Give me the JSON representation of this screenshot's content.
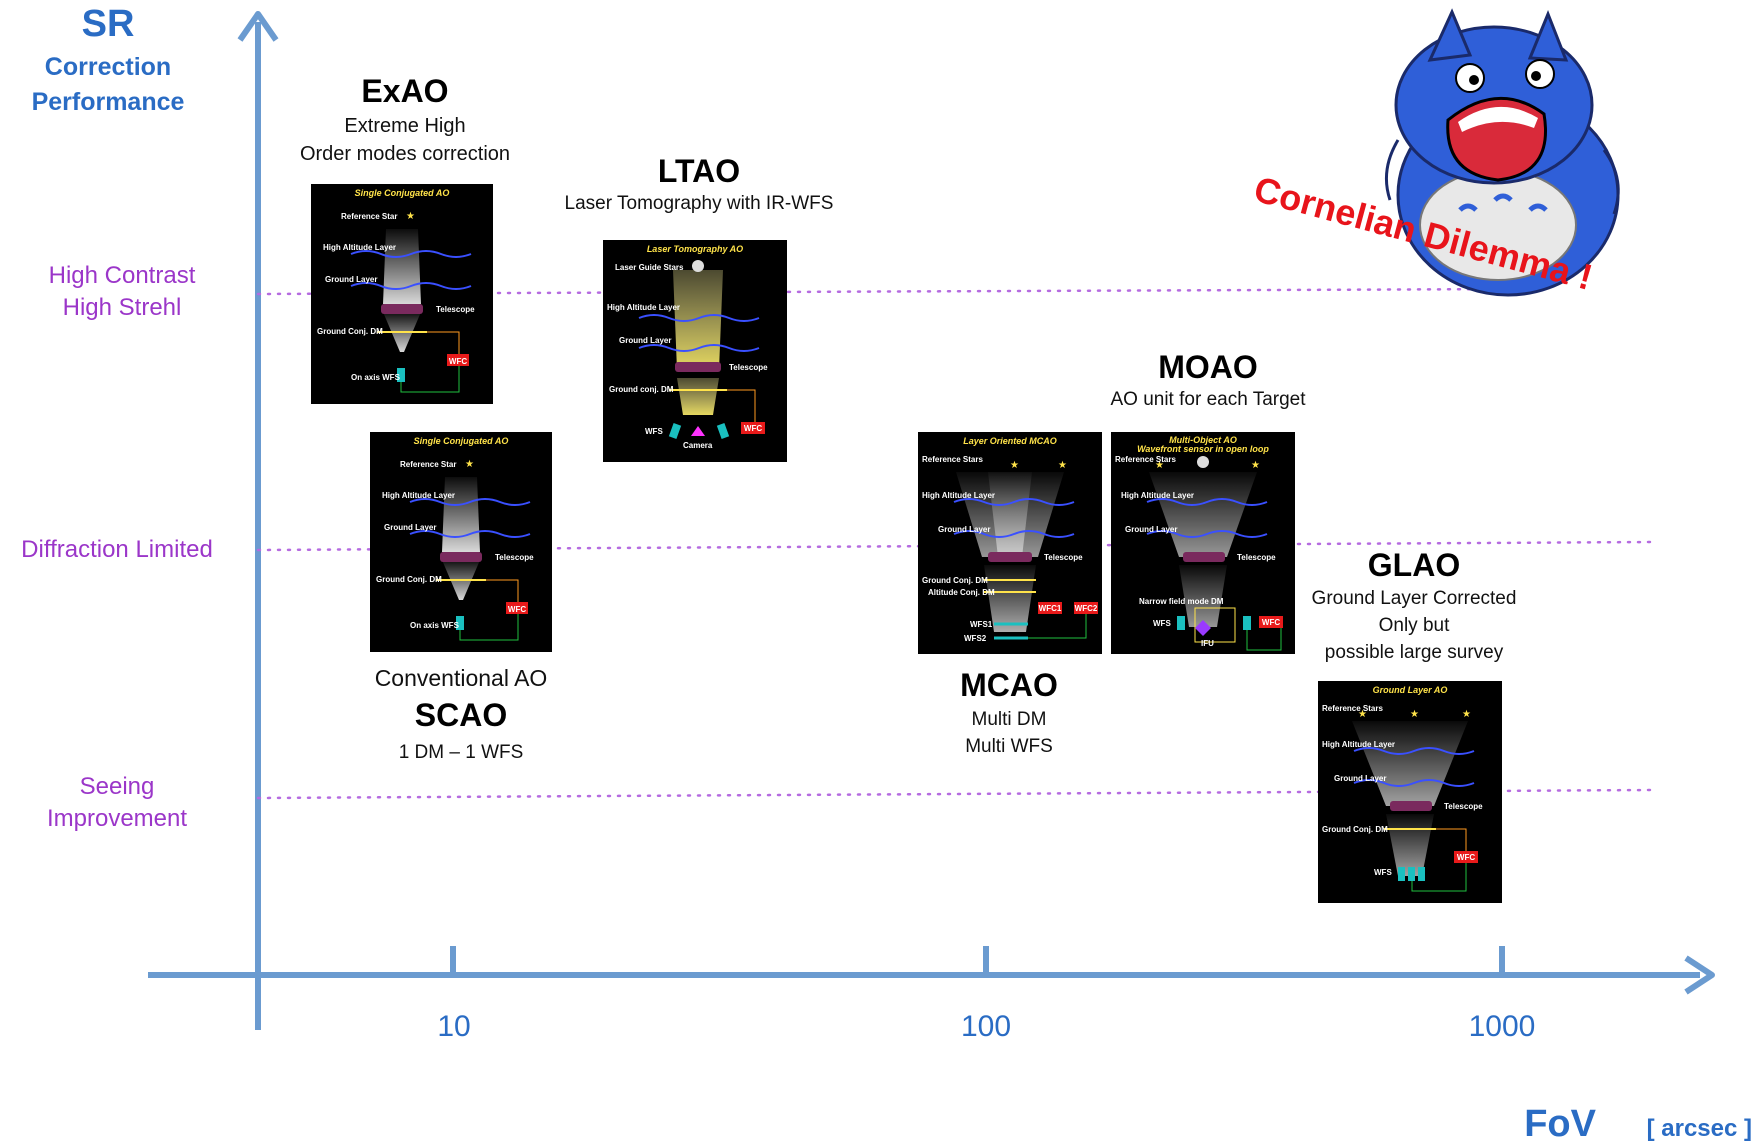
{
  "axes": {
    "y_title": "SR",
    "y_subtitle_1": "Correction",
    "y_subtitle_2": "Performance",
    "x_title": "FoV",
    "x_unit": "[ arcsec ]",
    "x_ticks": [
      "10",
      "100",
      "1000"
    ],
    "levels": [
      {
        "line1": "High Contrast",
        "line2": "High Strehl"
      },
      {
        "line1": "Diffraction Limited",
        "line2": ""
      },
      {
        "line1": "Seeing",
        "line2": "Improvement"
      }
    ]
  },
  "systems": {
    "exao": {
      "name": "ExAO",
      "desc1": "Extreme High",
      "desc2": "Order modes correction"
    },
    "ltao": {
      "name": "LTAO",
      "desc1": "Laser Tomography with IR-WFS"
    },
    "scao": {
      "pre": "Conventional AO",
      "name": "SCAO",
      "desc1": "1 DM – 1 WFS"
    },
    "moao": {
      "name": "MOAO",
      "desc1": "AO unit for each Target"
    },
    "mcao": {
      "name": "MCAO",
      "desc1": "Multi DM",
      "desc2": "Multi WFS"
    },
    "glao": {
      "name": "GLAO",
      "desc1": "Ground Layer Corrected",
      "desc2": "Only  but",
      "desc3": "possible large survey"
    }
  },
  "callout": {
    "text": "Cornelian Dilemma !"
  },
  "panels": {
    "exao": {
      "title": "Single Conjugated AO",
      "labels": [
        "Reference Star",
        "High Altitude Layer",
        "Ground Layer",
        "Telescope",
        "Ground Conj. DM",
        "WFC",
        "On axis WFS"
      ]
    },
    "scao": {
      "title": "Single Conjugated AO",
      "labels": [
        "Reference Star",
        "High Altitude Layer",
        "Ground Layer",
        "Telescope",
        "Ground Conj. DM",
        "WFC",
        "On axis WFS"
      ]
    },
    "ltao": {
      "title": "Laser Tomography AO",
      "labels": [
        "Laser Guide Stars",
        "High Altitude Layer",
        "Ground Layer",
        "Telescope",
        "Ground conj. DM",
        "WFC",
        "WFS",
        "Camera"
      ]
    },
    "mcao": {
      "title": "Layer Oriented MCAO",
      "labels": [
        "Reference Stars",
        "High Altitude Layer",
        "Ground Layer",
        "Telescope",
        "Ground Conj. DM",
        "Altitude Conj. DM",
        "WFC1",
        "WFC2",
        "WFS1",
        "WFS2"
      ]
    },
    "moao": {
      "title": "Multi-Object AO",
      "subtitle": "Wavefront sensor in open loop",
      "labels": [
        "Reference Stars",
        "High Altitude Layer",
        "Ground Layer",
        "Telescope",
        "Narrow field mode DM",
        "WFS",
        "IFU",
        "WFC"
      ]
    },
    "glao": {
      "title": "Ground Layer AO",
      "labels": [
        "Reference Stars",
        "High Altitude Layer",
        "Ground Layer",
        "Telescope",
        "Ground Conj. DM",
        "WFC",
        "WFS"
      ]
    }
  },
  "colors": {
    "axis": "#6b9bd0",
    "accent_blue": "#2a6cc4",
    "level_purple": "#9b36c9",
    "callout_red": "#e8141b",
    "mascot_blue": "#2f5fd8"
  }
}
